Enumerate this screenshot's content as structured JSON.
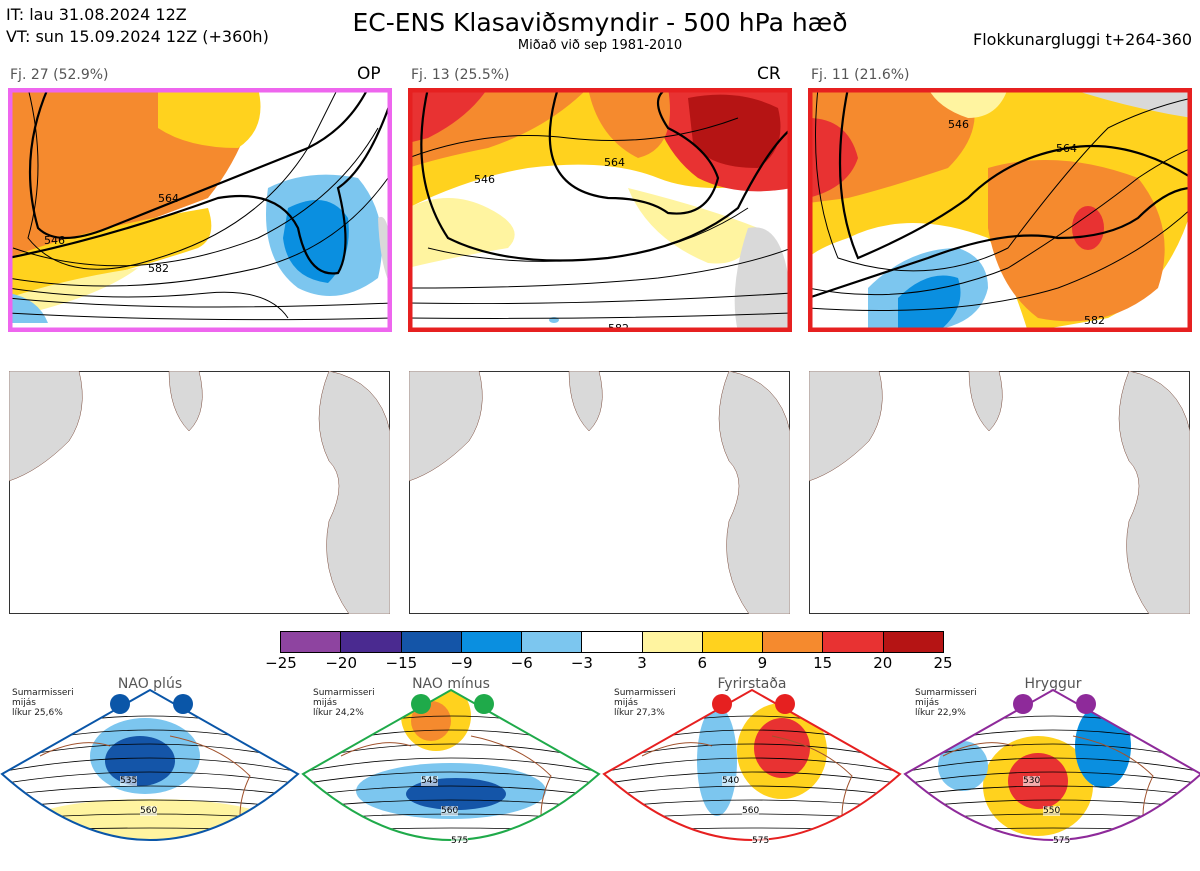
{
  "header": {
    "it": "IT: lau 31.08.2024 12Z",
    "vt": "VT: sun 15.09.2024 12Z  (+360h)",
    "title": "EC-ENS Klasaviðsmyndir - 500 hPa hæð",
    "subtitle": "Miðað við sep 1981-2010",
    "window": "Flokkunargluggi t+264-360"
  },
  "clusters": [
    {
      "label": "Fj. 27 (52.9%)",
      "tag": "OP",
      "frame_color": "#ee66ee",
      "contour_labels": [
        "546",
        "564",
        "582"
      ]
    },
    {
      "label": "Fj. 13 (25.5%)",
      "tag": "CR",
      "frame_color": "#e62020",
      "contour_labels": [
        "546",
        "564",
        "582"
      ]
    },
    {
      "label": "Fj. 11 (21.6%)",
      "tag": "",
      "frame_color": "#e62020",
      "contour_labels": [
        "546",
        "564",
        "582"
      ]
    }
  ],
  "colorbar": {
    "ticks": [
      "−25",
      "−20",
      "−15",
      "−9",
      "−6",
      "−3",
      "3",
      "6",
      "9",
      "15",
      "20",
      "25"
    ],
    "colors": [
      "#8e44a0",
      "#4a2a90",
      "#1455a8",
      "#0a8fe0",
      "#7cc6ef",
      "#ffffff",
      "#fff4a0",
      "#ffd21e",
      "#f58a2e",
      "#e83232",
      "#b51414"
    ]
  },
  "regimes": [
    {
      "title": "NAO plús",
      "season": [
        "Sumarmisseri",
        "mijás",
        "líkur 25,6%"
      ],
      "color": "#0a56a8",
      "labels": [
        "535",
        "560"
      ]
    },
    {
      "title": "NAO mínus",
      "season": [
        "Sumarmisseri",
        "mijás",
        "líkur 24,2%"
      ],
      "color": "#1faa4a",
      "labels": [
        "545",
        "560",
        "575"
      ]
    },
    {
      "title": "Fyrirstaða",
      "season": [
        "Sumarmisseri",
        "mijás",
        "líkur 27,3%"
      ],
      "color": "#e62020",
      "labels": [
        "540",
        "560",
        "575"
      ]
    },
    {
      "title": "Hryggur",
      "season": [
        "Sumarmisseri",
        "mijás",
        "líkur 22,9%"
      ],
      "color": "#8e2a9a",
      "labels": [
        "530",
        "550",
        "575"
      ]
    }
  ]
}
